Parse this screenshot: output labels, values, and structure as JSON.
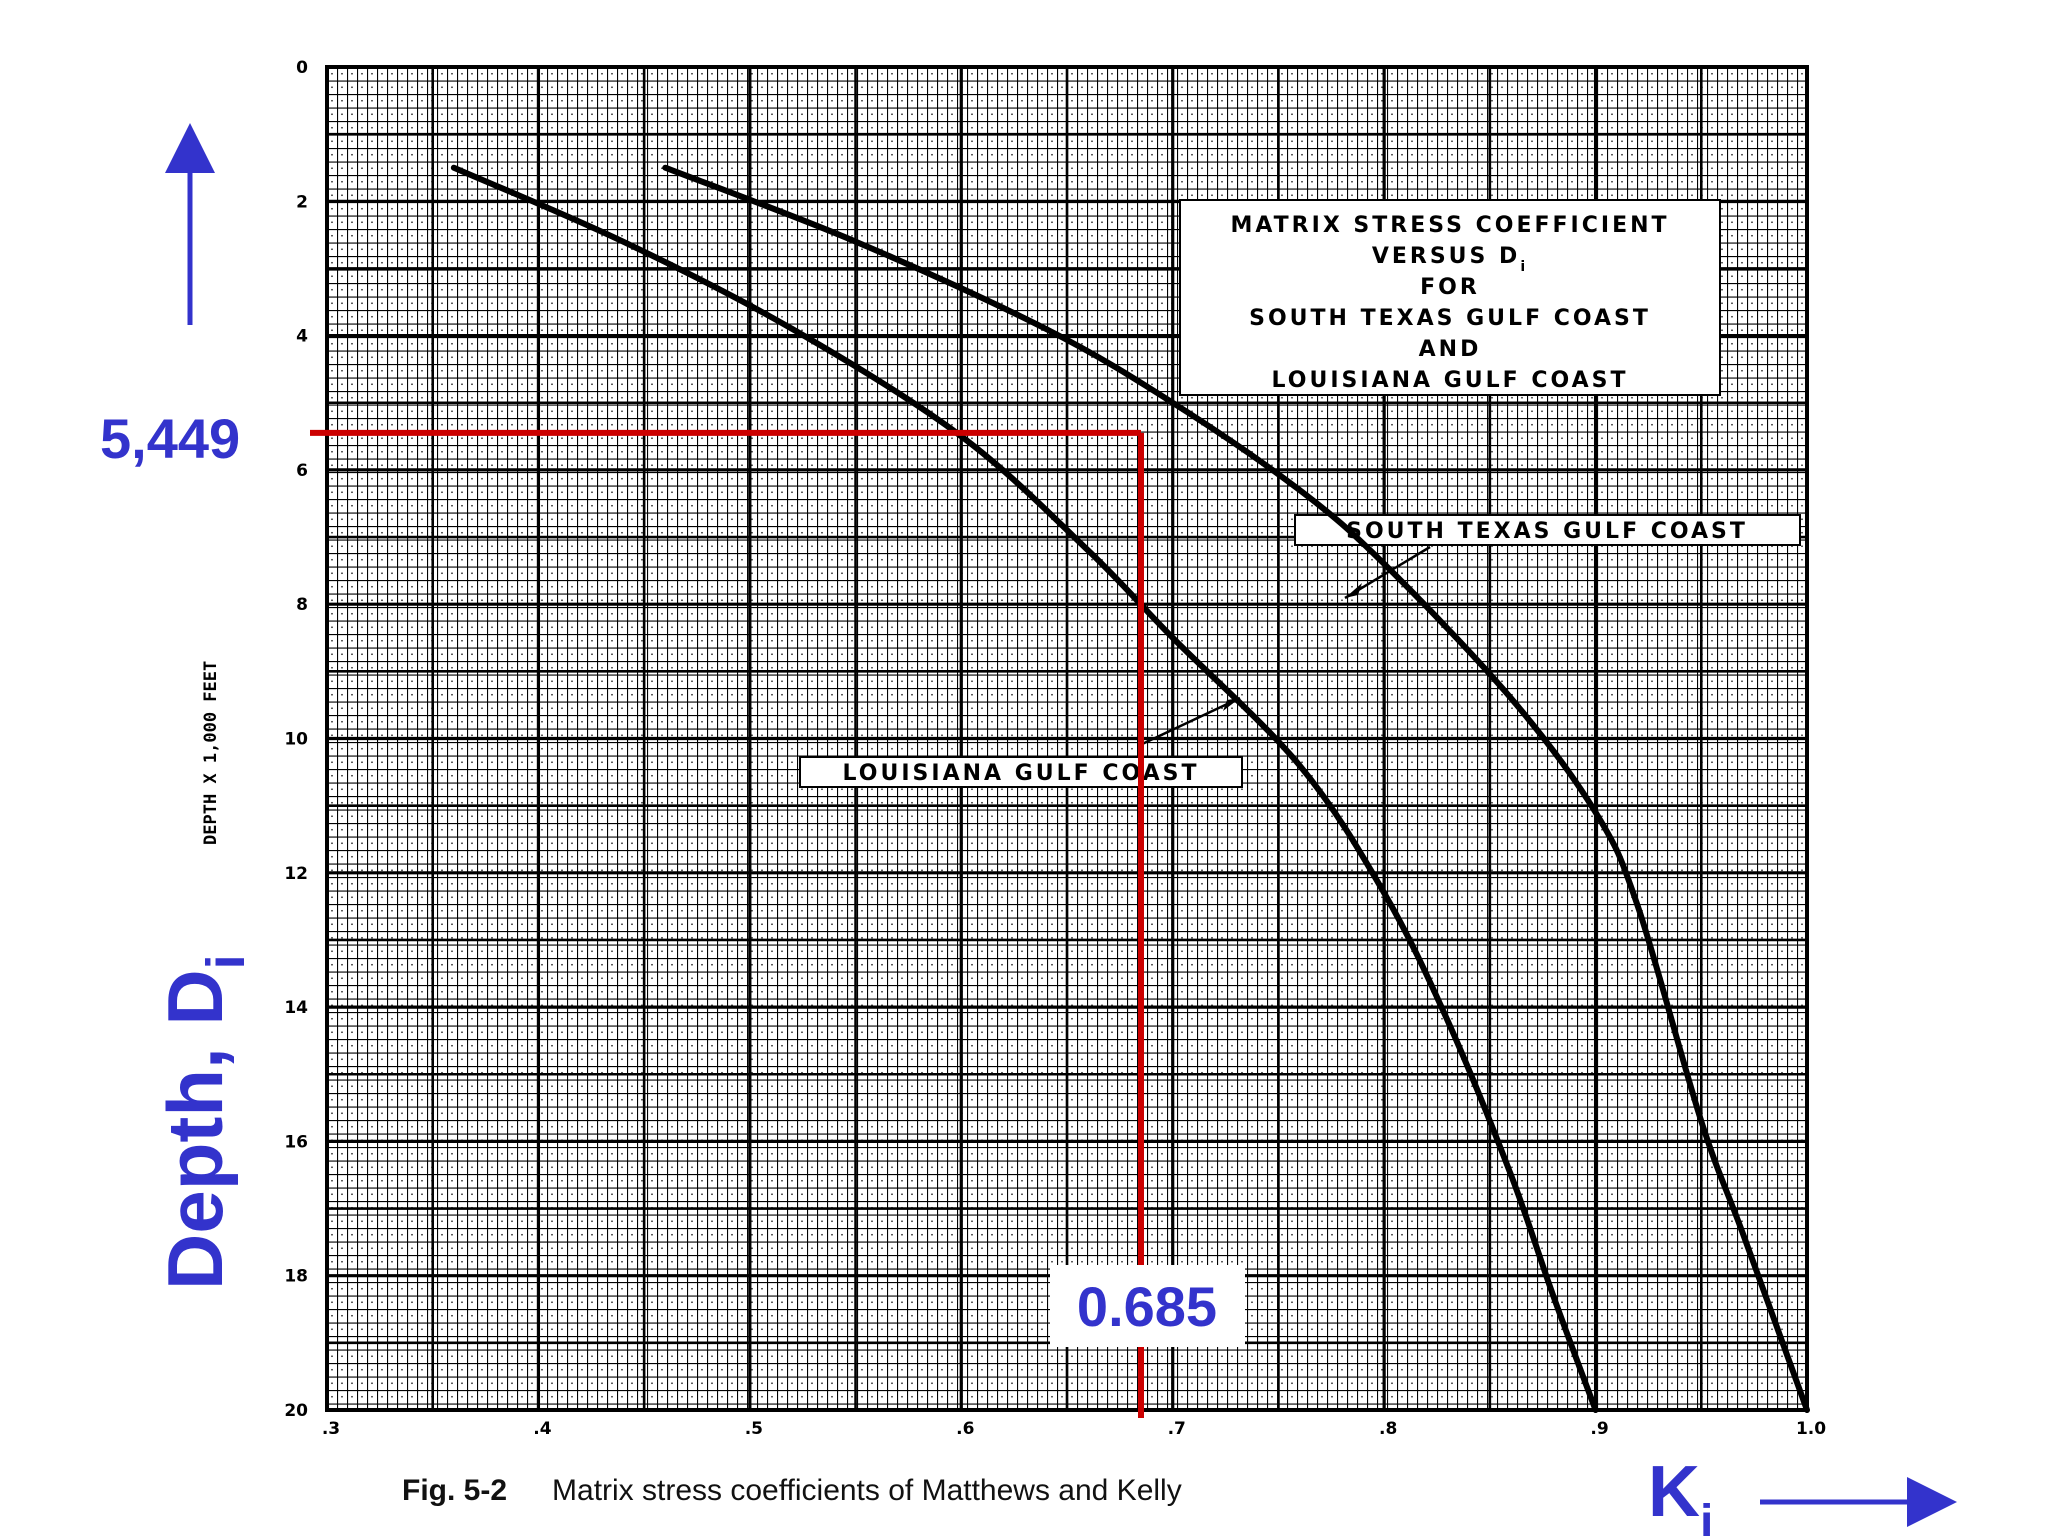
{
  "chart_data": {
    "type": "line",
    "y_axis_label": "DEPTH X 1,000 FEET",
    "y_ticks": [
      "0",
      "2",
      "4",
      "6",
      "8",
      "10",
      "12",
      "14",
      "16",
      "18",
      "20"
    ],
    "x_ticks": [
      ".3",
      ".4",
      ".5",
      ".6",
      ".7",
      ".8",
      ".9",
      "1.0"
    ],
    "xlim": [
      0.3,
      1.0
    ],
    "ylim": [
      0,
      20
    ],
    "y_inverted": true,
    "grid": true,
    "title_box": [
      "MATRIX STRESS COEFFICIENT",
      "VERSUS D",
      "FOR",
      "SOUTH TEXAS GULF COAST",
      "AND",
      "LOUISIANA GULF COAST"
    ],
    "title_box_subscript": "i",
    "series": [
      {
        "name": "SOUTH TEXAS GULF COAST",
        "points": [
          [
            0.46,
            1.5
          ],
          [
            0.55,
            2.6
          ],
          [
            0.64,
            3.9
          ],
          [
            0.7,
            5.0
          ],
          [
            0.76,
            6.3
          ],
          [
            0.8,
            7.4
          ],
          [
            0.86,
            9.4
          ],
          [
            0.9,
            11.1
          ],
          [
            0.92,
            12.5
          ],
          [
            0.95,
            15.7
          ],
          [
            0.97,
            17.4
          ],
          [
            1.0,
            20.0
          ]
        ]
      },
      {
        "name": "LOUISIANA GULF COAST",
        "points": [
          [
            0.36,
            1.5
          ],
          [
            0.44,
            2.6
          ],
          [
            0.52,
            3.9
          ],
          [
            0.6,
            5.5
          ],
          [
            0.66,
            7.2
          ],
          [
            0.7,
            8.5
          ],
          [
            0.76,
            10.4
          ],
          [
            0.8,
            12.3
          ],
          [
            0.83,
            14.2
          ],
          [
            0.86,
            16.5
          ],
          [
            0.88,
            18.3
          ],
          [
            0.9,
            20.0
          ]
        ]
      }
    ],
    "annotation": {
      "depth_label": "5,449",
      "depth_value": 5.449,
      "k_label": "0.685",
      "k_value": 0.685,
      "line_color": "#cc0000"
    }
  },
  "labels": {
    "depth_title": "Depth, D",
    "depth_sub": "i",
    "k_title": "K",
    "k_sub": "i",
    "caption_fig": "Fig. 5-2",
    "caption_text": "Matrix stress coefficients of Matthews and Kelly"
  },
  "colors": {
    "annotation_blue": "#3333cc",
    "annotation_red": "#cc0000",
    "grid": "#000000"
  }
}
